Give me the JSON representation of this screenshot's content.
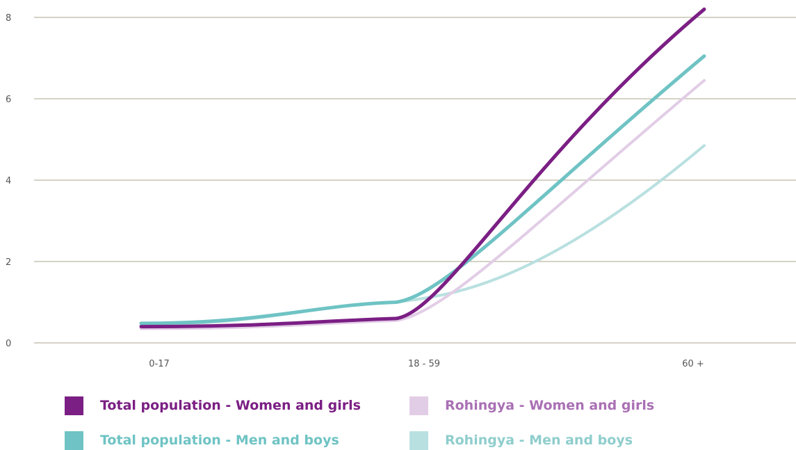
{
  "chart_data": {
    "type": "line",
    "categories": [
      "0-17",
      "18 - 59",
      "60 +"
    ],
    "yticks": [
      "0",
      "2",
      "4",
      "6",
      "8"
    ],
    "ylim": [
      0,
      8
    ],
    "grid": true,
    "legend_position": "bottom",
    "series": [
      {
        "name": "Total population - Women and girls",
        "color": "#7b1f84",
        "width": 5,
        "values": [
          0.4,
          0.6,
          8.2
        ]
      },
      {
        "name": "Total population - Men and boys",
        "color": "#6fc3c4",
        "width": 5,
        "values": [
          0.48,
          1.0,
          7.05
        ]
      },
      {
        "name": "Rohingya - Women and girls",
        "color": "#e2cde6",
        "width": 4,
        "values": [
          0.35,
          0.55,
          6.45
        ]
      },
      {
        "name": "Rohingya - Men and boys",
        "color": "#b9e0e0",
        "width": 4,
        "values": [
          0.45,
          1.0,
          4.85
        ]
      }
    ]
  },
  "legend": [
    {
      "label": "Total population - Women and girls",
      "swatch": "#7b1f84",
      "text_color": "#7b1f84"
    },
    {
      "label": "Rohingya - Women and girls",
      "swatch": "#e2cde6",
      "text_color": "#a970b4"
    },
    {
      "label": "Total population - Men and boys",
      "swatch": "#6fc3c4",
      "text_color": "#6fc3c4"
    },
    {
      "label": "Rohingya - Men and boys",
      "swatch": "#b9e0e0",
      "text_color": "#8fcdcd"
    }
  ]
}
